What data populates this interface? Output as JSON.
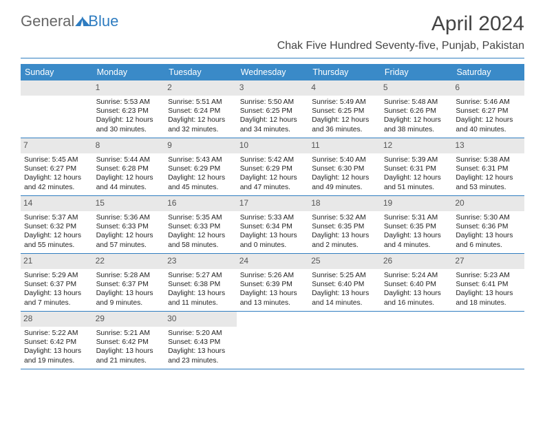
{
  "logo": {
    "text1": "General",
    "text2": "Blue"
  },
  "title": "April 2024",
  "subtitle": "Chak Five Hundred Seventy-five, Punjab, Pakistan",
  "dow": [
    "Sunday",
    "Monday",
    "Tuesday",
    "Wednesday",
    "Thursday",
    "Friday",
    "Saturday"
  ],
  "colors": {
    "accent": "#3a8ac8",
    "rule": "#2e7cc0",
    "dayband": "#e8e8e8",
    "text": "#333"
  },
  "weeks": [
    [
      {
        "n": "",
        "l": [
          "",
          "",
          "",
          ""
        ]
      },
      {
        "n": "1",
        "l": [
          "Sunrise: 5:53 AM",
          "Sunset: 6:23 PM",
          "Daylight: 12 hours",
          "and 30 minutes."
        ]
      },
      {
        "n": "2",
        "l": [
          "Sunrise: 5:51 AM",
          "Sunset: 6:24 PM",
          "Daylight: 12 hours",
          "and 32 minutes."
        ]
      },
      {
        "n": "3",
        "l": [
          "Sunrise: 5:50 AM",
          "Sunset: 6:25 PM",
          "Daylight: 12 hours",
          "and 34 minutes."
        ]
      },
      {
        "n": "4",
        "l": [
          "Sunrise: 5:49 AM",
          "Sunset: 6:25 PM",
          "Daylight: 12 hours",
          "and 36 minutes."
        ]
      },
      {
        "n": "5",
        "l": [
          "Sunrise: 5:48 AM",
          "Sunset: 6:26 PM",
          "Daylight: 12 hours",
          "and 38 minutes."
        ]
      },
      {
        "n": "6",
        "l": [
          "Sunrise: 5:46 AM",
          "Sunset: 6:27 PM",
          "Daylight: 12 hours",
          "and 40 minutes."
        ]
      }
    ],
    [
      {
        "n": "7",
        "l": [
          "Sunrise: 5:45 AM",
          "Sunset: 6:27 PM",
          "Daylight: 12 hours",
          "and 42 minutes."
        ]
      },
      {
        "n": "8",
        "l": [
          "Sunrise: 5:44 AM",
          "Sunset: 6:28 PM",
          "Daylight: 12 hours",
          "and 44 minutes."
        ]
      },
      {
        "n": "9",
        "l": [
          "Sunrise: 5:43 AM",
          "Sunset: 6:29 PM",
          "Daylight: 12 hours",
          "and 45 minutes."
        ]
      },
      {
        "n": "10",
        "l": [
          "Sunrise: 5:42 AM",
          "Sunset: 6:29 PM",
          "Daylight: 12 hours",
          "and 47 minutes."
        ]
      },
      {
        "n": "11",
        "l": [
          "Sunrise: 5:40 AM",
          "Sunset: 6:30 PM",
          "Daylight: 12 hours",
          "and 49 minutes."
        ]
      },
      {
        "n": "12",
        "l": [
          "Sunrise: 5:39 AM",
          "Sunset: 6:31 PM",
          "Daylight: 12 hours",
          "and 51 minutes."
        ]
      },
      {
        "n": "13",
        "l": [
          "Sunrise: 5:38 AM",
          "Sunset: 6:31 PM",
          "Daylight: 12 hours",
          "and 53 minutes."
        ]
      }
    ],
    [
      {
        "n": "14",
        "l": [
          "Sunrise: 5:37 AM",
          "Sunset: 6:32 PM",
          "Daylight: 12 hours",
          "and 55 minutes."
        ]
      },
      {
        "n": "15",
        "l": [
          "Sunrise: 5:36 AM",
          "Sunset: 6:33 PM",
          "Daylight: 12 hours",
          "and 57 minutes."
        ]
      },
      {
        "n": "16",
        "l": [
          "Sunrise: 5:35 AM",
          "Sunset: 6:33 PM",
          "Daylight: 12 hours",
          "and 58 minutes."
        ]
      },
      {
        "n": "17",
        "l": [
          "Sunrise: 5:33 AM",
          "Sunset: 6:34 PM",
          "Daylight: 13 hours",
          "and 0 minutes."
        ]
      },
      {
        "n": "18",
        "l": [
          "Sunrise: 5:32 AM",
          "Sunset: 6:35 PM",
          "Daylight: 13 hours",
          "and 2 minutes."
        ]
      },
      {
        "n": "19",
        "l": [
          "Sunrise: 5:31 AM",
          "Sunset: 6:35 PM",
          "Daylight: 13 hours",
          "and 4 minutes."
        ]
      },
      {
        "n": "20",
        "l": [
          "Sunrise: 5:30 AM",
          "Sunset: 6:36 PM",
          "Daylight: 13 hours",
          "and 6 minutes."
        ]
      }
    ],
    [
      {
        "n": "21",
        "l": [
          "Sunrise: 5:29 AM",
          "Sunset: 6:37 PM",
          "Daylight: 13 hours",
          "and 7 minutes."
        ]
      },
      {
        "n": "22",
        "l": [
          "Sunrise: 5:28 AM",
          "Sunset: 6:37 PM",
          "Daylight: 13 hours",
          "and 9 minutes."
        ]
      },
      {
        "n": "23",
        "l": [
          "Sunrise: 5:27 AM",
          "Sunset: 6:38 PM",
          "Daylight: 13 hours",
          "and 11 minutes."
        ]
      },
      {
        "n": "24",
        "l": [
          "Sunrise: 5:26 AM",
          "Sunset: 6:39 PM",
          "Daylight: 13 hours",
          "and 13 minutes."
        ]
      },
      {
        "n": "25",
        "l": [
          "Sunrise: 5:25 AM",
          "Sunset: 6:40 PM",
          "Daylight: 13 hours",
          "and 14 minutes."
        ]
      },
      {
        "n": "26",
        "l": [
          "Sunrise: 5:24 AM",
          "Sunset: 6:40 PM",
          "Daylight: 13 hours",
          "and 16 minutes."
        ]
      },
      {
        "n": "27",
        "l": [
          "Sunrise: 5:23 AM",
          "Sunset: 6:41 PM",
          "Daylight: 13 hours",
          "and 18 minutes."
        ]
      }
    ],
    [
      {
        "n": "28",
        "l": [
          "Sunrise: 5:22 AM",
          "Sunset: 6:42 PM",
          "Daylight: 13 hours",
          "and 19 minutes."
        ]
      },
      {
        "n": "29",
        "l": [
          "Sunrise: 5:21 AM",
          "Sunset: 6:42 PM",
          "Daylight: 13 hours",
          "and 21 minutes."
        ]
      },
      {
        "n": "30",
        "l": [
          "Sunrise: 5:20 AM",
          "Sunset: 6:43 PM",
          "Daylight: 13 hours",
          "and 23 minutes."
        ]
      },
      {
        "n": "",
        "l": [
          "",
          "",
          "",
          ""
        ]
      },
      {
        "n": "",
        "l": [
          "",
          "",
          "",
          ""
        ]
      },
      {
        "n": "",
        "l": [
          "",
          "",
          "",
          ""
        ]
      },
      {
        "n": "",
        "l": [
          "",
          "",
          "",
          ""
        ]
      }
    ]
  ]
}
